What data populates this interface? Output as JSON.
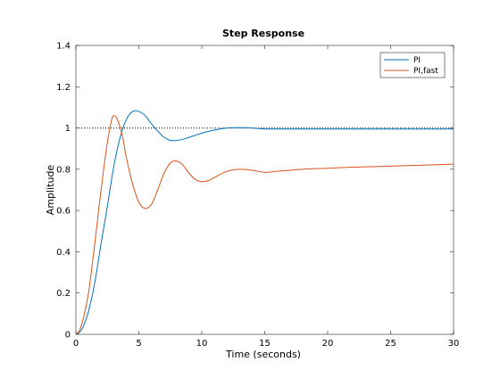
{
  "chart_data": {
    "type": "line",
    "title": "Step Response",
    "xlabel": "Time (seconds)",
    "ylabel": "Amplitude",
    "xlim": [
      0,
      30
    ],
    "ylim": [
      0,
      1.4
    ],
    "xticks": [
      0,
      5,
      10,
      15,
      20,
      25,
      30
    ],
    "yticks": [
      0,
      0.2,
      0.4,
      0.6,
      0.8,
      1,
      1.2,
      1.4
    ],
    "xtick_labels": [
      "0",
      "5",
      "10",
      "15",
      "20",
      "25",
      "30"
    ],
    "ytick_labels": [
      "0",
      "0.2",
      "0.4",
      "0.6",
      "0.8",
      "1",
      "1.2",
      "1.4"
    ],
    "grid": false,
    "legend_position": "top-right",
    "reference_line": {
      "y": 1,
      "style": "dotted"
    },
    "series": [
      {
        "name": "PI",
        "color": "#0072bd",
        "x": [
          0,
          0.3,
          0.6,
          1,
          1.5,
          2,
          2.5,
          3,
          3.5,
          4,
          4.5,
          5,
          5.5,
          6,
          6.5,
          7,
          7.5,
          8,
          8.5,
          9,
          9.5,
          10,
          11,
          12,
          13,
          14,
          15,
          16,
          18,
          20,
          22,
          25,
          30
        ],
        "y": [
          0,
          0.01,
          0.04,
          0.11,
          0.25,
          0.44,
          0.62,
          0.81,
          0.95,
          1.04,
          1.08,
          1.08,
          1.06,
          1.02,
          0.985,
          0.955,
          0.94,
          0.94,
          0.945,
          0.955,
          0.965,
          0.975,
          0.99,
          1.0,
          1.002,
          1.0,
          0.995,
          0.995,
          0.995,
          0.995,
          0.995,
          0.995,
          0.995
        ]
      },
      {
        "name": "PI,fast",
        "color": "#d95319",
        "x": [
          0,
          0.3,
          0.6,
          1,
          1.5,
          2,
          2.5,
          2.8,
          3,
          3.3,
          3.7,
          4,
          4.5,
          5,
          5.5,
          6,
          6.5,
          7,
          7.5,
          8,
          8.5,
          9,
          9.5,
          10,
          10.5,
          11,
          12,
          13,
          14,
          15,
          16,
          18,
          20,
          22,
          25,
          30
        ],
        "y": [
          0,
          0.02,
          0.08,
          0.2,
          0.44,
          0.7,
          0.93,
          1.03,
          1.06,
          1.04,
          0.96,
          0.86,
          0.73,
          0.64,
          0.61,
          0.63,
          0.7,
          0.78,
          0.83,
          0.84,
          0.82,
          0.78,
          0.75,
          0.74,
          0.745,
          0.76,
          0.79,
          0.8,
          0.795,
          0.785,
          0.79,
          0.8,
          0.805,
          0.81,
          0.815,
          0.825
        ]
      }
    ]
  }
}
